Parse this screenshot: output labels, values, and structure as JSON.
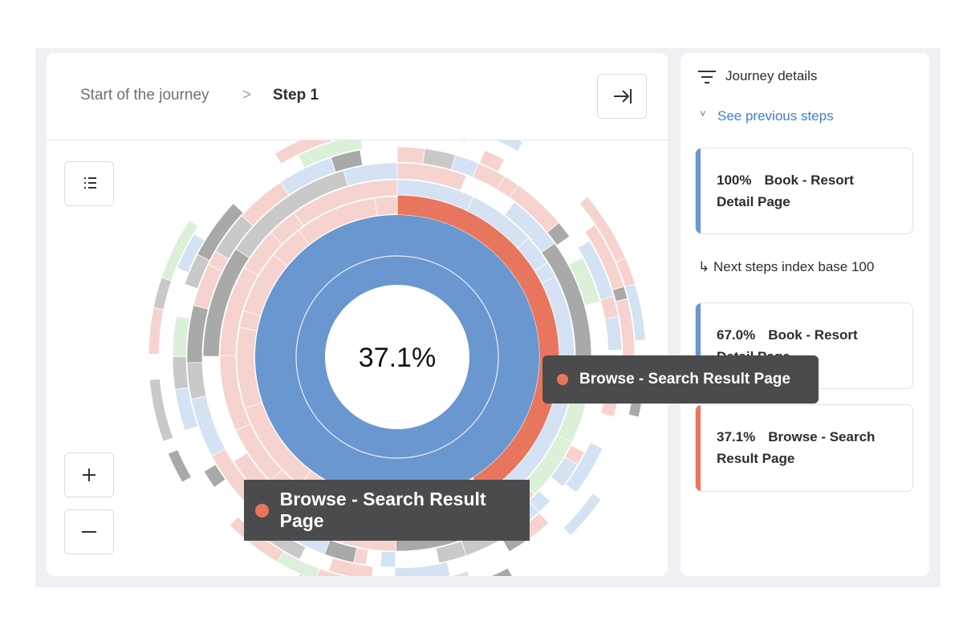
{
  "breadcrumb": {
    "start": "Start of the journey",
    "separator": ">",
    "current": "Step 1"
  },
  "chart": {
    "center_label": "37.1%"
  },
  "tooltips": [
    "Browse - Search Result Page",
    "Browse - Search Result Page"
  ],
  "panel": {
    "title": "Journey details",
    "previous_link": "See previous steps",
    "cards": [
      {
        "percent": "100%",
        "label": "Book - Resort Detail Page"
      }
    ],
    "next_steps_label": "Next steps index base 100",
    "next_cards": [
      {
        "percent": "67.0%",
        "label": "Book - Resort Detail Page"
      },
      {
        "percent": "37.1%",
        "label": "Browse - Search Result Page"
      }
    ]
  }
}
